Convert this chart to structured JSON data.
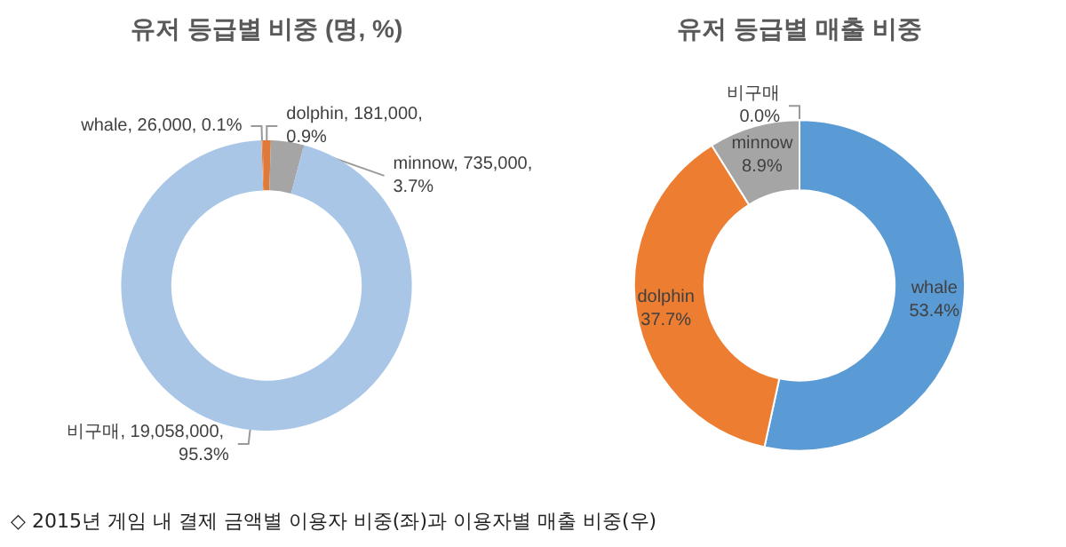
{
  "chart_data": [
    {
      "type": "donut",
      "title": "유저 등급별 비중 (명, %)",
      "categories": [
        "whale",
        "dolphin",
        "minnow",
        "비구매"
      ],
      "values": [
        26000,
        181000,
        735000,
        19058000
      ],
      "value_labels": [
        "26,000, 0.1%",
        "181,000, 0.9%",
        "735,000, 3.7%",
        "19,058,000, 95.3%"
      ],
      "colors": [
        "#ed7d31",
        "#e07a3a",
        "#a5a5a5",
        "#a9c6e6"
      ],
      "annotations": [
        "◇ 2015년 게임 내 결제 금액별 이용자 비중(좌)과 이용자별 매출 비중(우)"
      ]
    },
    {
      "type": "donut",
      "title": "유저 등급별 매출 비중",
      "categories": [
        "비구매",
        "whale",
        "dolphin",
        "minnow"
      ],
      "values": [
        0.0,
        53.4,
        37.7,
        8.9
      ],
      "value_labels": [
        "0.0%",
        "53.4%",
        "37.7%",
        "8.9%"
      ],
      "colors": [
        "#ffc000",
        "#5b9bd5",
        "#ed7d31",
        "#a5a5a5"
      ]
    }
  ]
}
